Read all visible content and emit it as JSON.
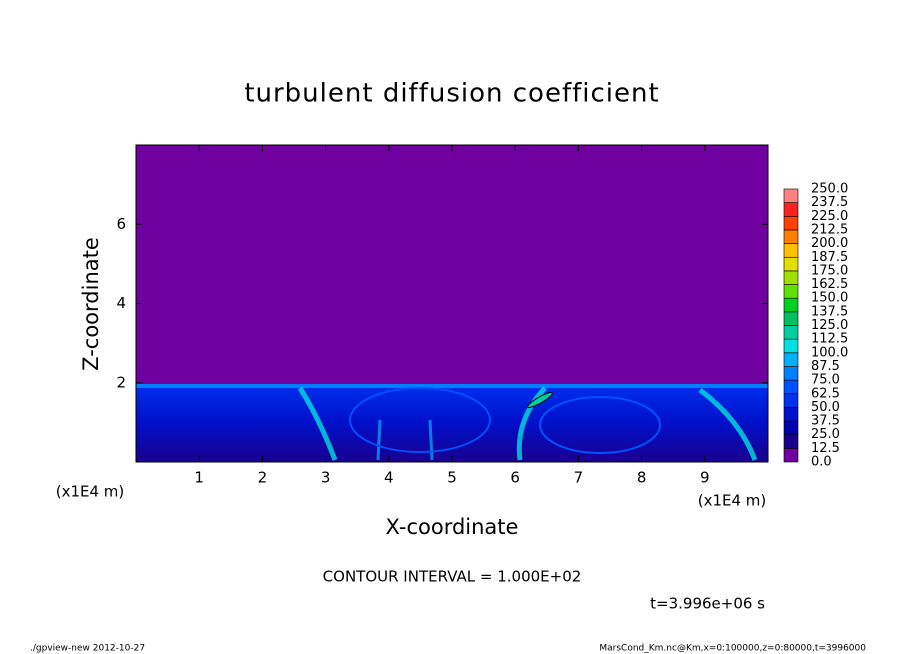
{
  "chart_data": {
    "type": "contour",
    "title": "turbulent diffusion coefficient",
    "xlabel": "X-coordinate",
    "ylabel": "Z-coordinate",
    "x_unit": "(x1E4 m)",
    "y_unit": "(x1E4 m)",
    "xlim": [
      0,
      10
    ],
    "ylim": [
      0,
      8
    ],
    "xticks": [
      1,
      2,
      3,
      4,
      5,
      6,
      7,
      8,
      9
    ],
    "yticks": [
      2,
      4,
      6
    ],
    "colorbar": {
      "levels": [
        {
          "value": 0,
          "label": "0.0"
        },
        12.5,
        {
          "value": 25,
          "label": "25.0"
        },
        37.5,
        {
          "value": 50,
          "label": "50.0"
        },
        62.5,
        {
          "value": 75,
          "label": "75.0"
        },
        87.5,
        {
          "value": 100,
          "label": "100.0"
        },
        112.5,
        {
          "value": 125,
          "label": "125.0"
        },
        137.5,
        {
          "value": 150,
          "label": "150.0"
        },
        162.5,
        {
          "value": 175,
          "label": "175.0"
        },
        187.5,
        {
          "value": 200,
          "label": "200.0"
        },
        212.5,
        {
          "value": 225,
          "label": "225.0"
        },
        237.5,
        {
          "value": 250,
          "label": "250.0"
        }
      ],
      "colors": [
        "#7000a0",
        "#1a0090",
        "#0000b0",
        "#0010d0",
        "#0030f0",
        "#0050ff",
        "#0080ff",
        "#00b0ff",
        "#00e0e0",
        "#00d0a0",
        "#00c060",
        "#00d020",
        "#60e000",
        "#a0e000",
        "#e0e000",
        "#ffc000",
        "#ff8000",
        "#ff4000",
        "#ff2020",
        "#ff8080"
      ]
    },
    "contour_note": "CONTOUR INTERVAL = 1.000E+02",
    "time_note": "t=3.996e+06 s",
    "footer_left": "./gpview-new  2012-10-27",
    "footer_right": "MarsCond_Km.nc@Km,x=0:100000,z=0:80000,t=3996000"
  }
}
